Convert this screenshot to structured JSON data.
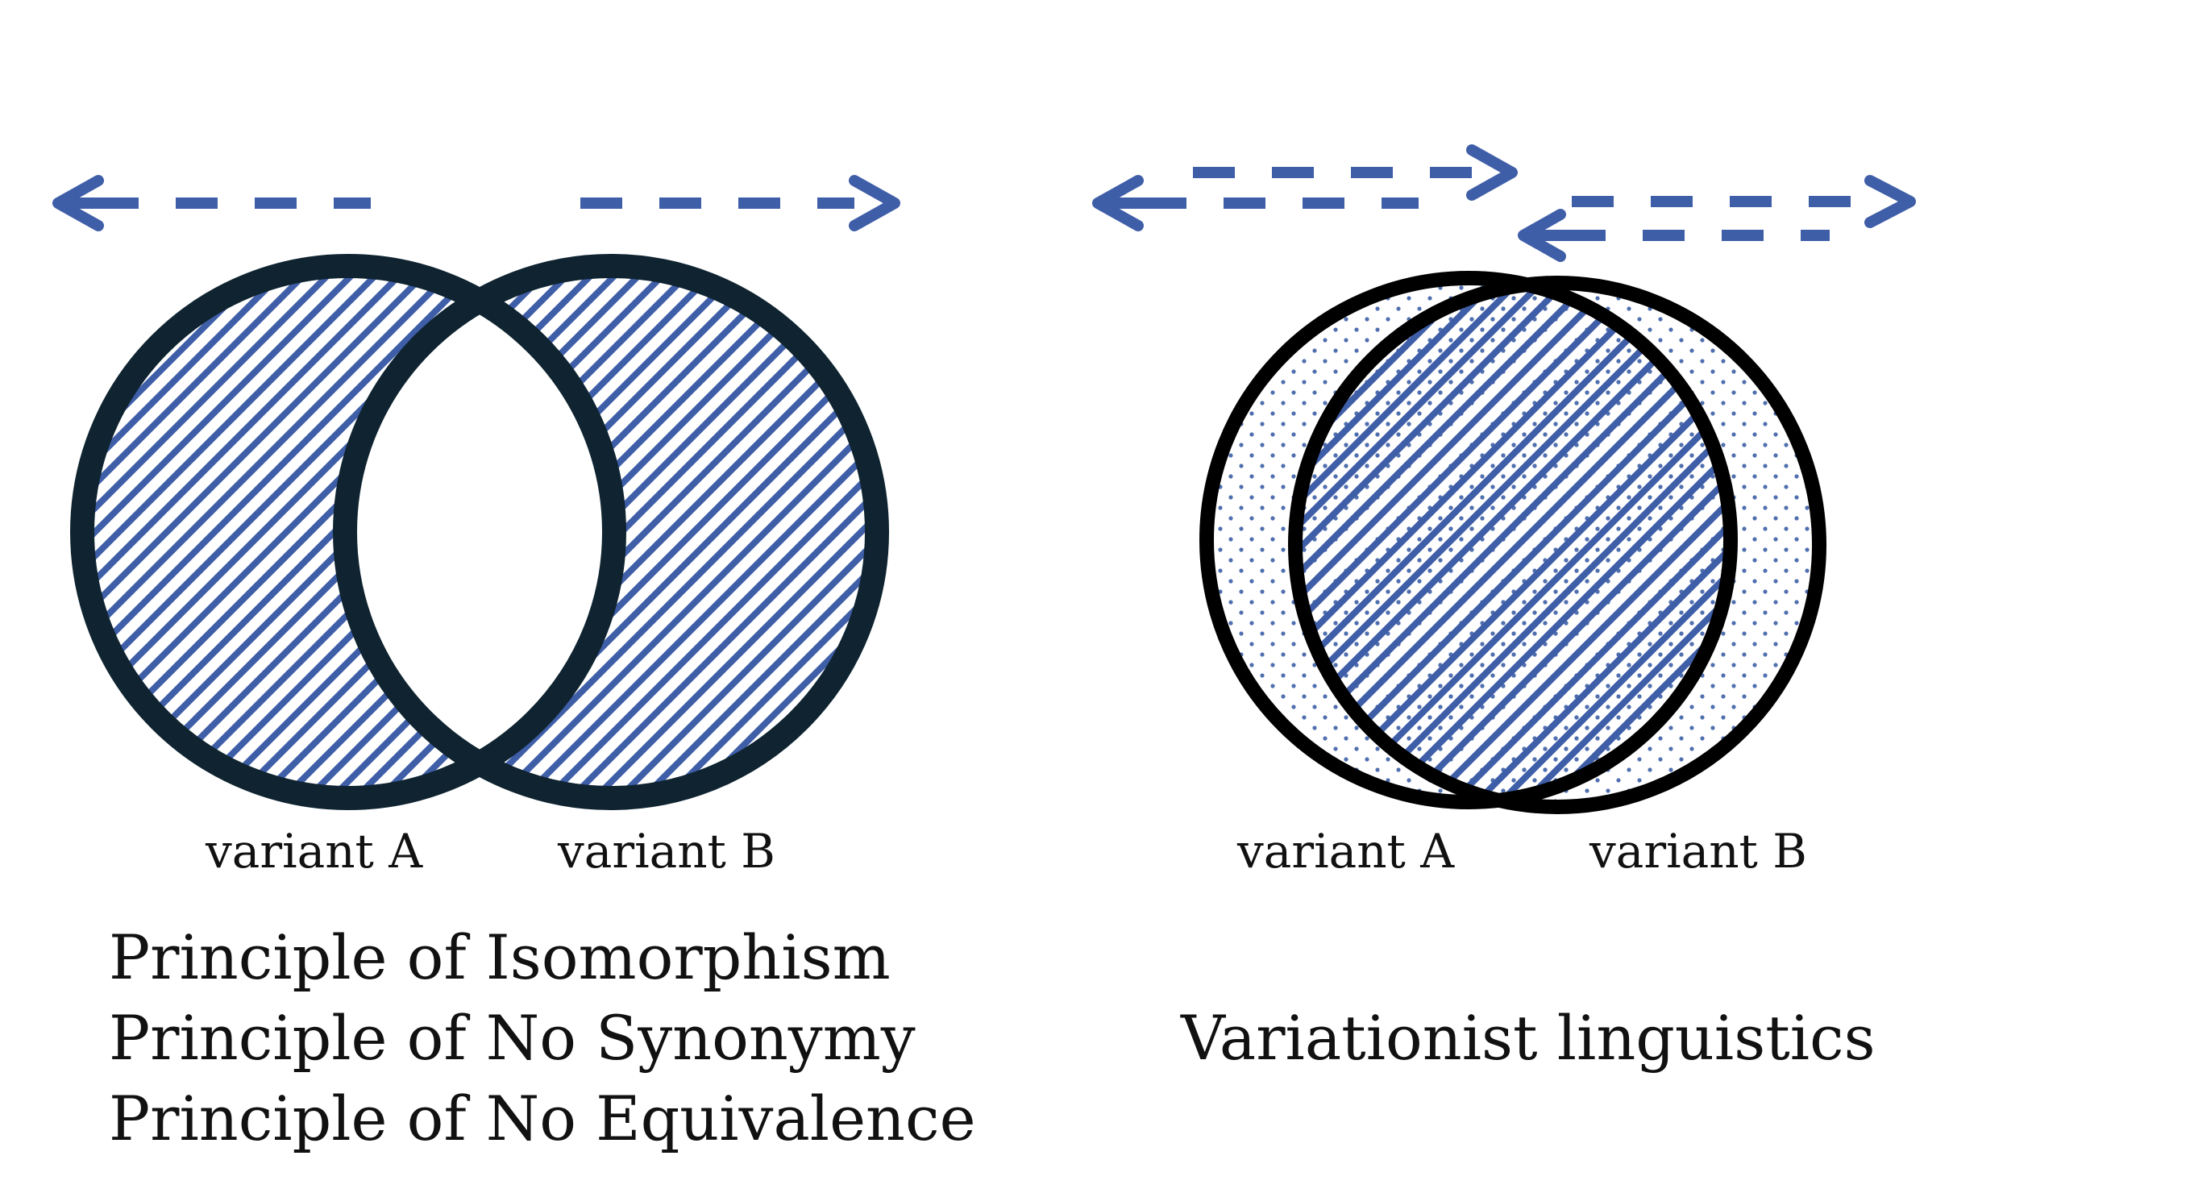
{
  "colors": {
    "accent": "#3f5ea8",
    "stroke_left": "#0f2430",
    "stroke_right": "#000000",
    "text": "#111111"
  },
  "left_panel": {
    "variant_a_label": "variant A",
    "variant_b_label": "variant B",
    "principles": [
      "Principle of Isomorphism",
      "Principle of No Synonymy",
      "Principle of No Equivalence"
    ],
    "arrows": [
      "left-arrow",
      "right-arrow"
    ]
  },
  "right_panel": {
    "variant_a_label": "variant A",
    "variant_b_label": "variant B",
    "caption": "Variationist linguistics",
    "arrows": [
      "right-arrow",
      "left-arrow",
      "double-arrow"
    ]
  }
}
